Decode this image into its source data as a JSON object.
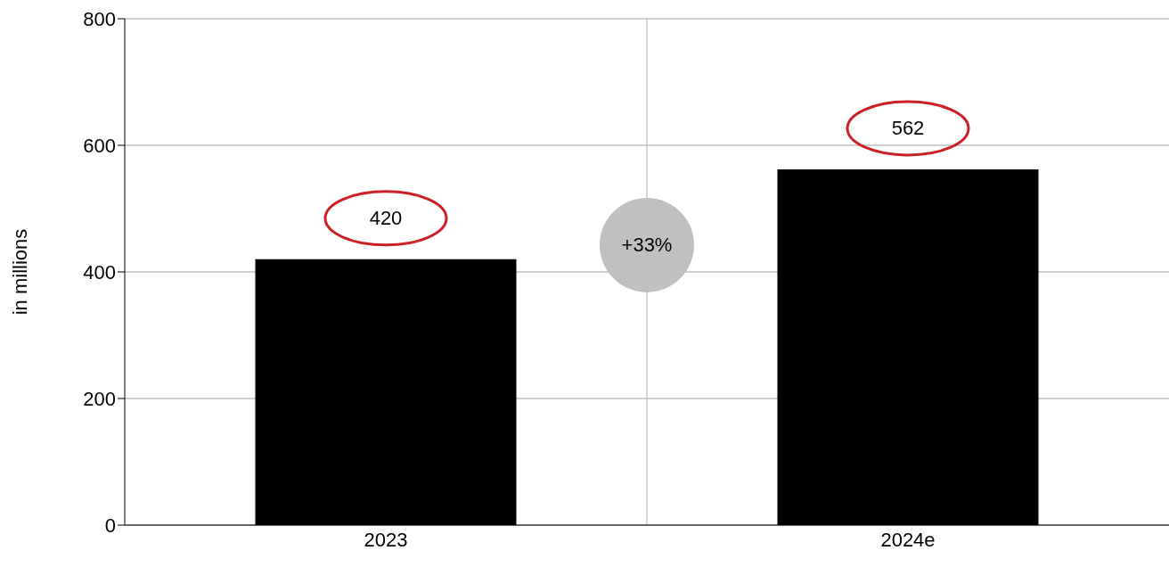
{
  "chart_data": {
    "type": "bar",
    "ylabel": "in millions",
    "categories": [
      "2023",
      "2024e"
    ],
    "values": [
      420,
      562
    ],
    "color": "#000000",
    "ylim": [
      0,
      800
    ],
    "yticks": [
      0,
      200,
      400,
      600,
      800
    ],
    "grid": true,
    "data_labels": true,
    "annotations": [
      "+33%"
    ]
  }
}
